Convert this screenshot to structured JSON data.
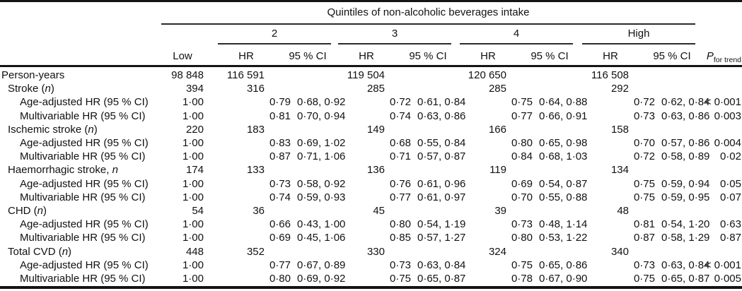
{
  "header": {
    "span_title": "Quintiles of non-alcoholic beverages intake",
    "low_label": "Low",
    "group_labels": [
      "2",
      "3",
      "4",
      "High"
    ],
    "hr_label": "HR",
    "ci_label": "95 % CI",
    "p_label": "P",
    "p_sub": "for trend"
  },
  "rows": [
    {
      "label": {
        "pre": "Person-years",
        "it": "",
        "post": ""
      },
      "indent": 0,
      "type": "counts",
      "low": "98 848",
      "groups": [
        "116 591",
        "119 504",
        "120 650",
        "116 508"
      ],
      "p": ""
    },
    {
      "label": {
        "pre": "Stroke (",
        "it": "n",
        "post": ")"
      },
      "indent": 1,
      "type": "counts",
      "low": "394",
      "groups": [
        "316",
        "285",
        "285",
        "292"
      ],
      "p": ""
    },
    {
      "label": {
        "pre": "Age-adjusted HR (95 % CI)",
        "it": "",
        "post": ""
      },
      "indent": 2,
      "type": "hr",
      "low": "1·00",
      "groups": [
        {
          "hr": "0·79",
          "ci": "0·68, 0·92"
        },
        {
          "hr": "0·72",
          "ci": "0·61, 0·84"
        },
        {
          "hr": "0·75",
          "ci": "0·64, 0·88"
        },
        {
          "hr": "0·72",
          "ci": "0·62, 0·84"
        }
      ],
      "p": "< 0·001"
    },
    {
      "label": {
        "pre": "Multivariable HR (95 % CI)",
        "it": "",
        "post": ""
      },
      "indent": 2,
      "type": "hr",
      "low": "1·00",
      "groups": [
        {
          "hr": "0·81",
          "ci": "0·70, 0·94"
        },
        {
          "hr": "0·74",
          "ci": "0·63, 0·86"
        },
        {
          "hr": "0·77",
          "ci": "0·66, 0·91"
        },
        {
          "hr": "0·73",
          "ci": "0·63, 0·86"
        }
      ],
      "p": "0·003"
    },
    {
      "label": {
        "pre": "Ischemic stroke (",
        "it": "n",
        "post": ")"
      },
      "indent": 1,
      "type": "counts",
      "low": "220",
      "groups": [
        "183",
        "149",
        "166",
        "158"
      ],
      "p": ""
    },
    {
      "label": {
        "pre": "Age-adjusted HR (95 % CI)",
        "it": "",
        "post": ""
      },
      "indent": 2,
      "type": "hr",
      "low": "1·00",
      "groups": [
        {
          "hr": "0·83",
          "ci": "0·69, 1·02"
        },
        {
          "hr": "0·68",
          "ci": "0·55, 0·84"
        },
        {
          "hr": "0·80",
          "ci": "0·65, 0·98"
        },
        {
          "hr": "0·70",
          "ci": "0·57, 0·86"
        }
      ],
      "p": "0·004"
    },
    {
      "label": {
        "pre": "Multivariable HR (95 % CI)",
        "it": "",
        "post": ""
      },
      "indent": 2,
      "type": "hr",
      "low": "1·00",
      "groups": [
        {
          "hr": "0·87",
          "ci": "0·71, 1·06"
        },
        {
          "hr": "0·71",
          "ci": "0·57, 0·87"
        },
        {
          "hr": "0·84",
          "ci": "0·68, 1·03"
        },
        {
          "hr": "0·72",
          "ci": "0·58, 0·89"
        }
      ],
      "p": "0·02"
    },
    {
      "label": {
        "pre": "Haemorrhagic stroke, ",
        "it": "n",
        "post": ""
      },
      "indent": 1,
      "type": "counts",
      "low": "174",
      "groups": [
        "133",
        "136",
        "119",
        "134"
      ],
      "p": ""
    },
    {
      "label": {
        "pre": "Age-adjusted HR (95 % CI)",
        "it": "",
        "post": ""
      },
      "indent": 2,
      "type": "hr",
      "low": "1·00",
      "groups": [
        {
          "hr": "0·73",
          "ci": "0·58, 0·92"
        },
        {
          "hr": "0·76",
          "ci": "0·61, 0·96"
        },
        {
          "hr": "0·69",
          "ci": "0·54, 0·87"
        },
        {
          "hr": "0·75",
          "ci": "0·59, 0·94"
        }
      ],
      "p": "0·05"
    },
    {
      "label": {
        "pre": "Multivariable HR (95 % CI)",
        "it": "",
        "post": ""
      },
      "indent": 2,
      "type": "hr",
      "low": "1·00",
      "groups": [
        {
          "hr": "0·74",
          "ci": "0·59, 0·93"
        },
        {
          "hr": "0·77",
          "ci": "0·61, 0·97"
        },
        {
          "hr": "0·70",
          "ci": "0·55, 0·88"
        },
        {
          "hr": "0·75",
          "ci": "0·59, 0·95"
        }
      ],
      "p": "0·07"
    },
    {
      "label": {
        "pre": "CHD (",
        "it": "n",
        "post": ")"
      },
      "indent": 1,
      "type": "counts",
      "low": "54",
      "groups": [
        "36",
        "45",
        "39",
        "48"
      ],
      "p": ""
    },
    {
      "label": {
        "pre": "Age-adjusted HR (95 % CI)",
        "it": "",
        "post": ""
      },
      "indent": 2,
      "type": "hr",
      "low": "1·00",
      "groups": [
        {
          "hr": "0·66",
          "ci": "0·43, 1·00"
        },
        {
          "hr": "0·80",
          "ci": "0·54, 1·19"
        },
        {
          "hr": "0·73",
          "ci": "0·48, 1·14"
        },
        {
          "hr": "0·81",
          "ci": "0·54, 1·20"
        }
      ],
      "p": "0·63"
    },
    {
      "label": {
        "pre": "Multivariable HR (95 % CI)",
        "it": "",
        "post": ""
      },
      "indent": 2,
      "type": "hr",
      "low": "1·00",
      "groups": [
        {
          "hr": "0·69",
          "ci": "0·45, 1·06"
        },
        {
          "hr": "0·85",
          "ci": "0·57, 1·27"
        },
        {
          "hr": "0·80",
          "ci": "0·53, 1·22"
        },
        {
          "hr": "0·87",
          "ci": "0·58, 1·29"
        }
      ],
      "p": "0·87"
    },
    {
      "label": {
        "pre": "Total CVD (",
        "it": "n",
        "post": ")"
      },
      "indent": 1,
      "type": "counts",
      "low": "448",
      "groups": [
        "352",
        "330",
        "324",
        "340"
      ],
      "p": ""
    },
    {
      "label": {
        "pre": "Age-adjusted HR (95 % CI)",
        "it": "",
        "post": ""
      },
      "indent": 2,
      "type": "hr",
      "low": "1·00",
      "groups": [
        {
          "hr": "0·77",
          "ci": "0·67, 0·89"
        },
        {
          "hr": "0·73",
          "ci": "0·63, 0·84"
        },
        {
          "hr": "0·75",
          "ci": "0·65, 0·86"
        },
        {
          "hr": "0·73",
          "ci": "0·63, 0·84"
        }
      ],
      "p": "< 0·001"
    },
    {
      "label": {
        "pre": "Multivariable HR (95 % CI)",
        "it": "",
        "post": ""
      },
      "indent": 2,
      "type": "hr",
      "low": "1·00",
      "groups": [
        {
          "hr": "0·80",
          "ci": "0·69, 0·92"
        },
        {
          "hr": "0·75",
          "ci": "0·65, 0·87"
        },
        {
          "hr": "0·78",
          "ci": "0·67, 0·90"
        },
        {
          "hr": "0·75",
          "ci": "0·65, 0·87"
        }
      ],
      "p": "0·005"
    }
  ]
}
